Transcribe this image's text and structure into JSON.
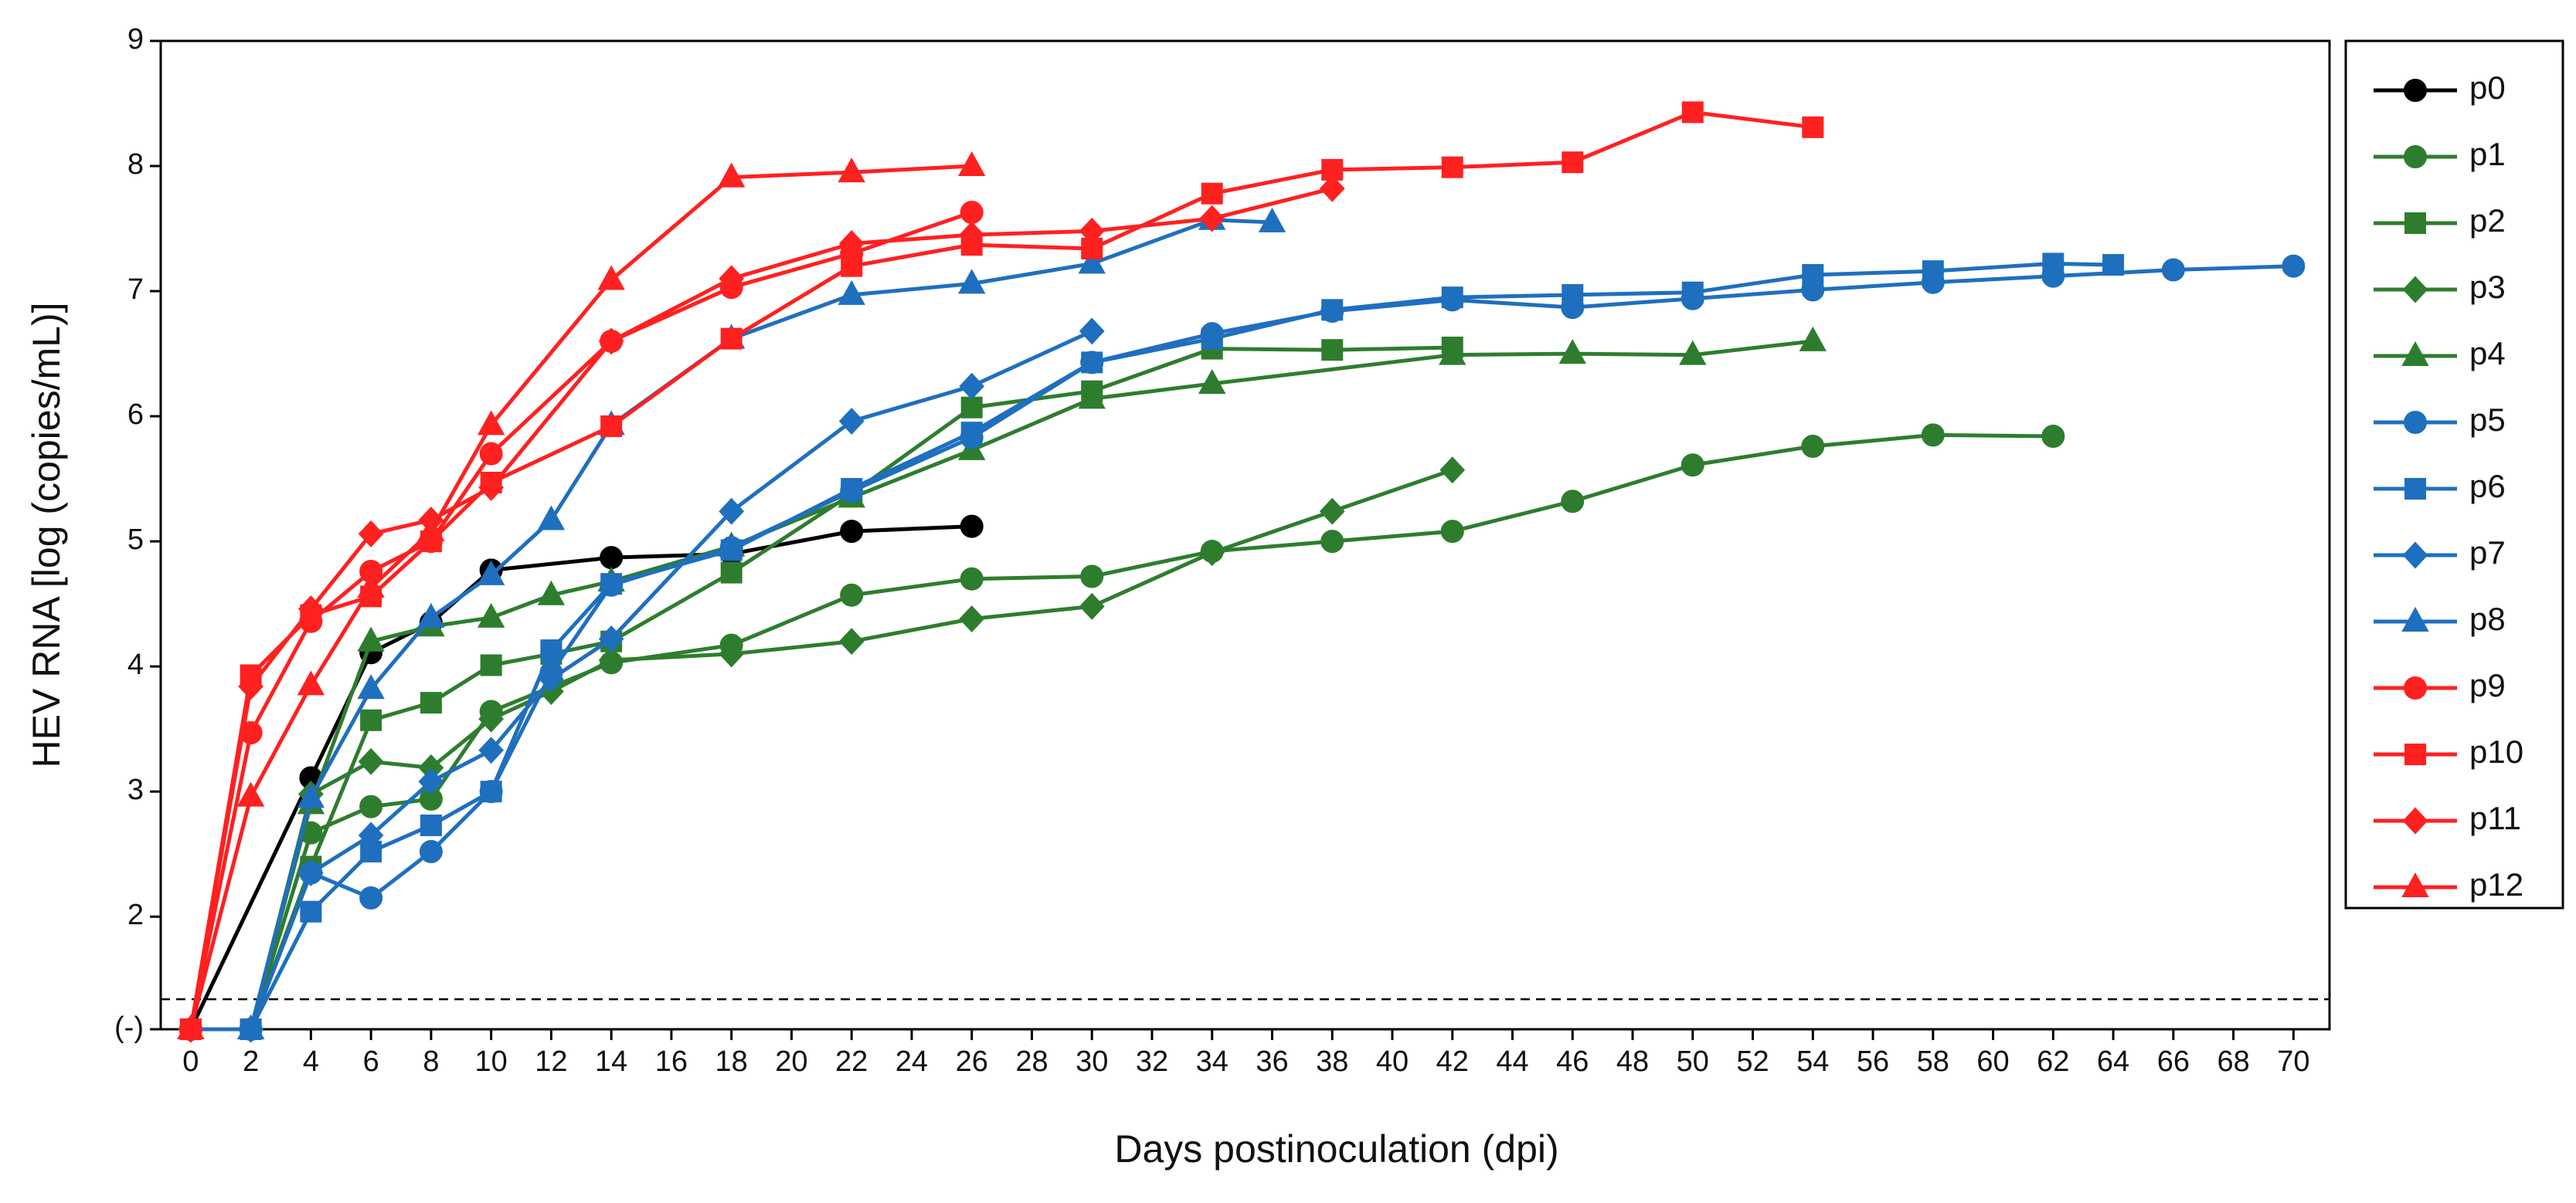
{
  "chart_data": {
    "type": "line",
    "xlabel": "Days postinoculation (dpi)",
    "ylabel": "HEV RNA [log (copies/mL)]",
    "xlim": [
      -1,
      71.2
    ],
    "ylim": [
      1.1,
      9
    ],
    "xticks": [
      0,
      2,
      4,
      6,
      8,
      10,
      12,
      14,
      16,
      18,
      20,
      22,
      24,
      26,
      28,
      30,
      32,
      34,
      36,
      38,
      40,
      42,
      44,
      46,
      48,
      50,
      52,
      54,
      56,
      58,
      60,
      62,
      64,
      66,
      68,
      70
    ],
    "yticks": [
      {
        "value": 1.1,
        "label": "(-)"
      },
      2,
      3,
      4,
      5,
      6,
      7,
      8,
      9
    ],
    "reference_line": 1.34,
    "legend": "right",
    "series": [
      {
        "name": "p0",
        "color": "#000000",
        "marker": "circle",
        "x": [
          0,
          4,
          6,
          8,
          10,
          14,
          18,
          22,
          26
        ],
        "values": [
          1.1,
          3.11,
          4.11,
          4.35,
          4.77,
          4.87,
          4.9,
          5.08,
          5.12
        ]
      },
      {
        "name": "p1",
        "color": "#2e7d2e",
        "marker": "circle",
        "x": [
          0,
          2,
          4,
          6,
          8,
          10,
          14,
          18,
          22,
          26,
          30,
          34,
          38,
          42,
          46,
          50,
          54,
          58,
          62
        ],
        "values": [
          1.1,
          1.1,
          2.67,
          2.88,
          2.94,
          3.64,
          4.03,
          4.17,
          4.57,
          4.7,
          4.72,
          4.92,
          5.0,
          5.08,
          5.32,
          5.61,
          5.76,
          5.85,
          5.84
        ]
      },
      {
        "name": "p2",
        "color": "#2e7d2e",
        "marker": "square",
        "x": [
          0,
          2,
          4,
          6,
          8,
          10,
          12,
          14,
          18,
          22,
          26,
          30,
          34,
          38,
          42
        ],
        "values": [
          1.1,
          1.1,
          2.4,
          3.57,
          3.71,
          4.01,
          4.1,
          4.2,
          4.75,
          5.38,
          6.07,
          6.2,
          6.54,
          6.53,
          6.55
        ]
      },
      {
        "name": "p3",
        "color": "#2e7d2e",
        "marker": "diamond",
        "x": [
          0,
          2,
          4,
          6,
          8,
          10,
          12,
          14,
          18,
          22,
          26,
          30,
          34,
          38,
          42
        ],
        "values": [
          1.1,
          1.1,
          2.98,
          3.24,
          3.19,
          3.58,
          3.8,
          4.05,
          4.1,
          4.2,
          4.38,
          4.48,
          4.91,
          5.24,
          5.57
        ]
      },
      {
        "name": "p4",
        "color": "#2e7d2e",
        "marker": "triangle",
        "x": [
          0,
          2,
          4,
          6,
          8,
          10,
          12,
          14,
          18,
          22,
          26,
          30,
          34,
          42,
          46,
          50,
          54
        ],
        "values": [
          1.1,
          1.1,
          2.9,
          4.2,
          4.32,
          4.39,
          4.57,
          4.68,
          4.96,
          5.35,
          5.73,
          6.14,
          6.26,
          6.49,
          6.5,
          6.49,
          6.6
        ]
      },
      {
        "name": "p5",
        "color": "#1f6fbf",
        "marker": "circle",
        "x": [
          0,
          2,
          4,
          6,
          8,
          10,
          12,
          14,
          18,
          22,
          26,
          30,
          34,
          38,
          42,
          46,
          50,
          54,
          58,
          62,
          66,
          70
        ],
        "values": [
          1.1,
          1.1,
          2.35,
          2.15,
          2.52,
          3.0,
          3.95,
          4.65,
          4.95,
          5.4,
          5.83,
          6.43,
          6.66,
          6.84,
          6.93,
          6.87,
          6.94,
          7.01,
          7.07,
          7.12,
          7.17,
          7.2
        ]
      },
      {
        "name": "p6",
        "color": "#1f6fbf",
        "marker": "square",
        "x": [
          0,
          2,
          4,
          6,
          8,
          10,
          12,
          14,
          18,
          22,
          26,
          30,
          34,
          38,
          42,
          46,
          50,
          54,
          58,
          62,
          64
        ],
        "values": [
          1.1,
          1.1,
          2.04,
          2.52,
          2.73,
          3.0,
          4.13,
          4.66,
          4.93,
          5.42,
          5.87,
          6.43,
          6.62,
          6.85,
          6.95,
          6.97,
          6.99,
          7.13,
          7.16,
          7.22,
          7.21
        ]
      },
      {
        "name": "p7",
        "color": "#1f6fbf",
        "marker": "diamond",
        "x": [
          0,
          2,
          4,
          6,
          8,
          10,
          12,
          14,
          18,
          22,
          26,
          30
        ],
        "values": [
          1.1,
          1.1,
          2.35,
          2.65,
          3.08,
          3.33,
          3.9,
          4.22,
          5.24,
          5.96,
          6.24,
          6.68
        ]
      },
      {
        "name": "p8",
        "color": "#1f6fbf",
        "marker": "triangle",
        "x": [
          0,
          2,
          4,
          6,
          8,
          10,
          12,
          14,
          18,
          22,
          26,
          30,
          34,
          36
        ],
        "values": [
          1.1,
          1.1,
          2.95,
          3.82,
          4.39,
          4.73,
          5.17,
          5.93,
          6.62,
          6.97,
          7.06,
          7.22,
          7.57,
          7.55
        ]
      },
      {
        "name": "p9",
        "color": "#ff2020",
        "marker": "circle",
        "x": [
          0,
          2,
          4,
          6,
          8,
          10,
          14,
          18,
          22,
          26
        ],
        "values": [
          1.1,
          3.47,
          4.36,
          4.76,
          5.0,
          5.7,
          6.6,
          7.03,
          7.3,
          7.63
        ]
      },
      {
        "name": "p10",
        "color": "#ff2020",
        "marker": "square",
        "x": [
          0,
          2,
          4,
          6,
          8,
          10,
          14,
          18,
          22,
          26,
          30,
          34,
          38,
          42,
          46,
          50,
          54
        ],
        "values": [
          1.1,
          3.93,
          4.41,
          4.56,
          5.0,
          5.47,
          5.92,
          6.62,
          7.2,
          7.37,
          7.34,
          7.78,
          7.97,
          7.99,
          8.03,
          8.43,
          8.31
        ]
      },
      {
        "name": "p11",
        "color": "#ff2020",
        "marker": "diamond",
        "x": [
          0,
          2,
          4,
          6,
          8,
          10,
          14,
          18,
          22,
          26,
          30,
          34,
          38
        ],
        "values": [
          1.1,
          3.84,
          4.46,
          5.06,
          5.17,
          5.43,
          6.6,
          7.1,
          7.38,
          7.45,
          7.48,
          7.58,
          7.82
        ]
      },
      {
        "name": "p12",
        "color": "#ff2020",
        "marker": "triangle",
        "x": [
          0,
          2,
          4,
          6,
          8,
          10,
          14,
          18,
          22,
          26
        ],
        "values": [
          1.1,
          2.96,
          3.85,
          4.63,
          5.08,
          5.93,
          7.09,
          7.91,
          7.95,
          8.0
        ]
      }
    ]
  }
}
